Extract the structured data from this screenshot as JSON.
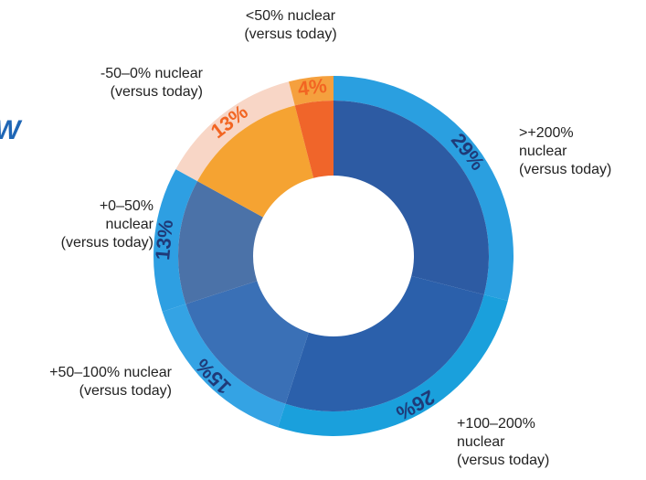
{
  "chart_data": {
    "type": "donut",
    "annotation": "W",
    "categories": [
      ">+200%\nnuclear\n(versus today)",
      "+100–200%\nnuclear\n(versus today)",
      "+50–100% nuclear\n(versus today)",
      "+0–50%\nnuclear\n(versus today)",
      "-50–0% nuclear\n(versus today)",
      "<50% nuclear\n(versus today)"
    ],
    "values": [
      29,
      26,
      15,
      13,
      13,
      4
    ],
    "value_labels": [
      "29%",
      "26%",
      "15%",
      "13%",
      "13%",
      "4%"
    ],
    "colors": [
      "#2d5ba3",
      "#2b60ab",
      "#3a70b6",
      "#4b72a8",
      "#f5a332",
      "#f0652a"
    ],
    "ring_colors": [
      "#2a9fe0",
      "#1aa0dc",
      "#34a3e4",
      "#2e9fe2",
      "#f8d6c6",
      "#f5a03e"
    ],
    "label_colors": [
      "#1f3a78",
      "#1f3a78",
      "#1f3a78",
      "#1f3a78",
      "#f26522",
      "#f26522"
    ]
  }
}
